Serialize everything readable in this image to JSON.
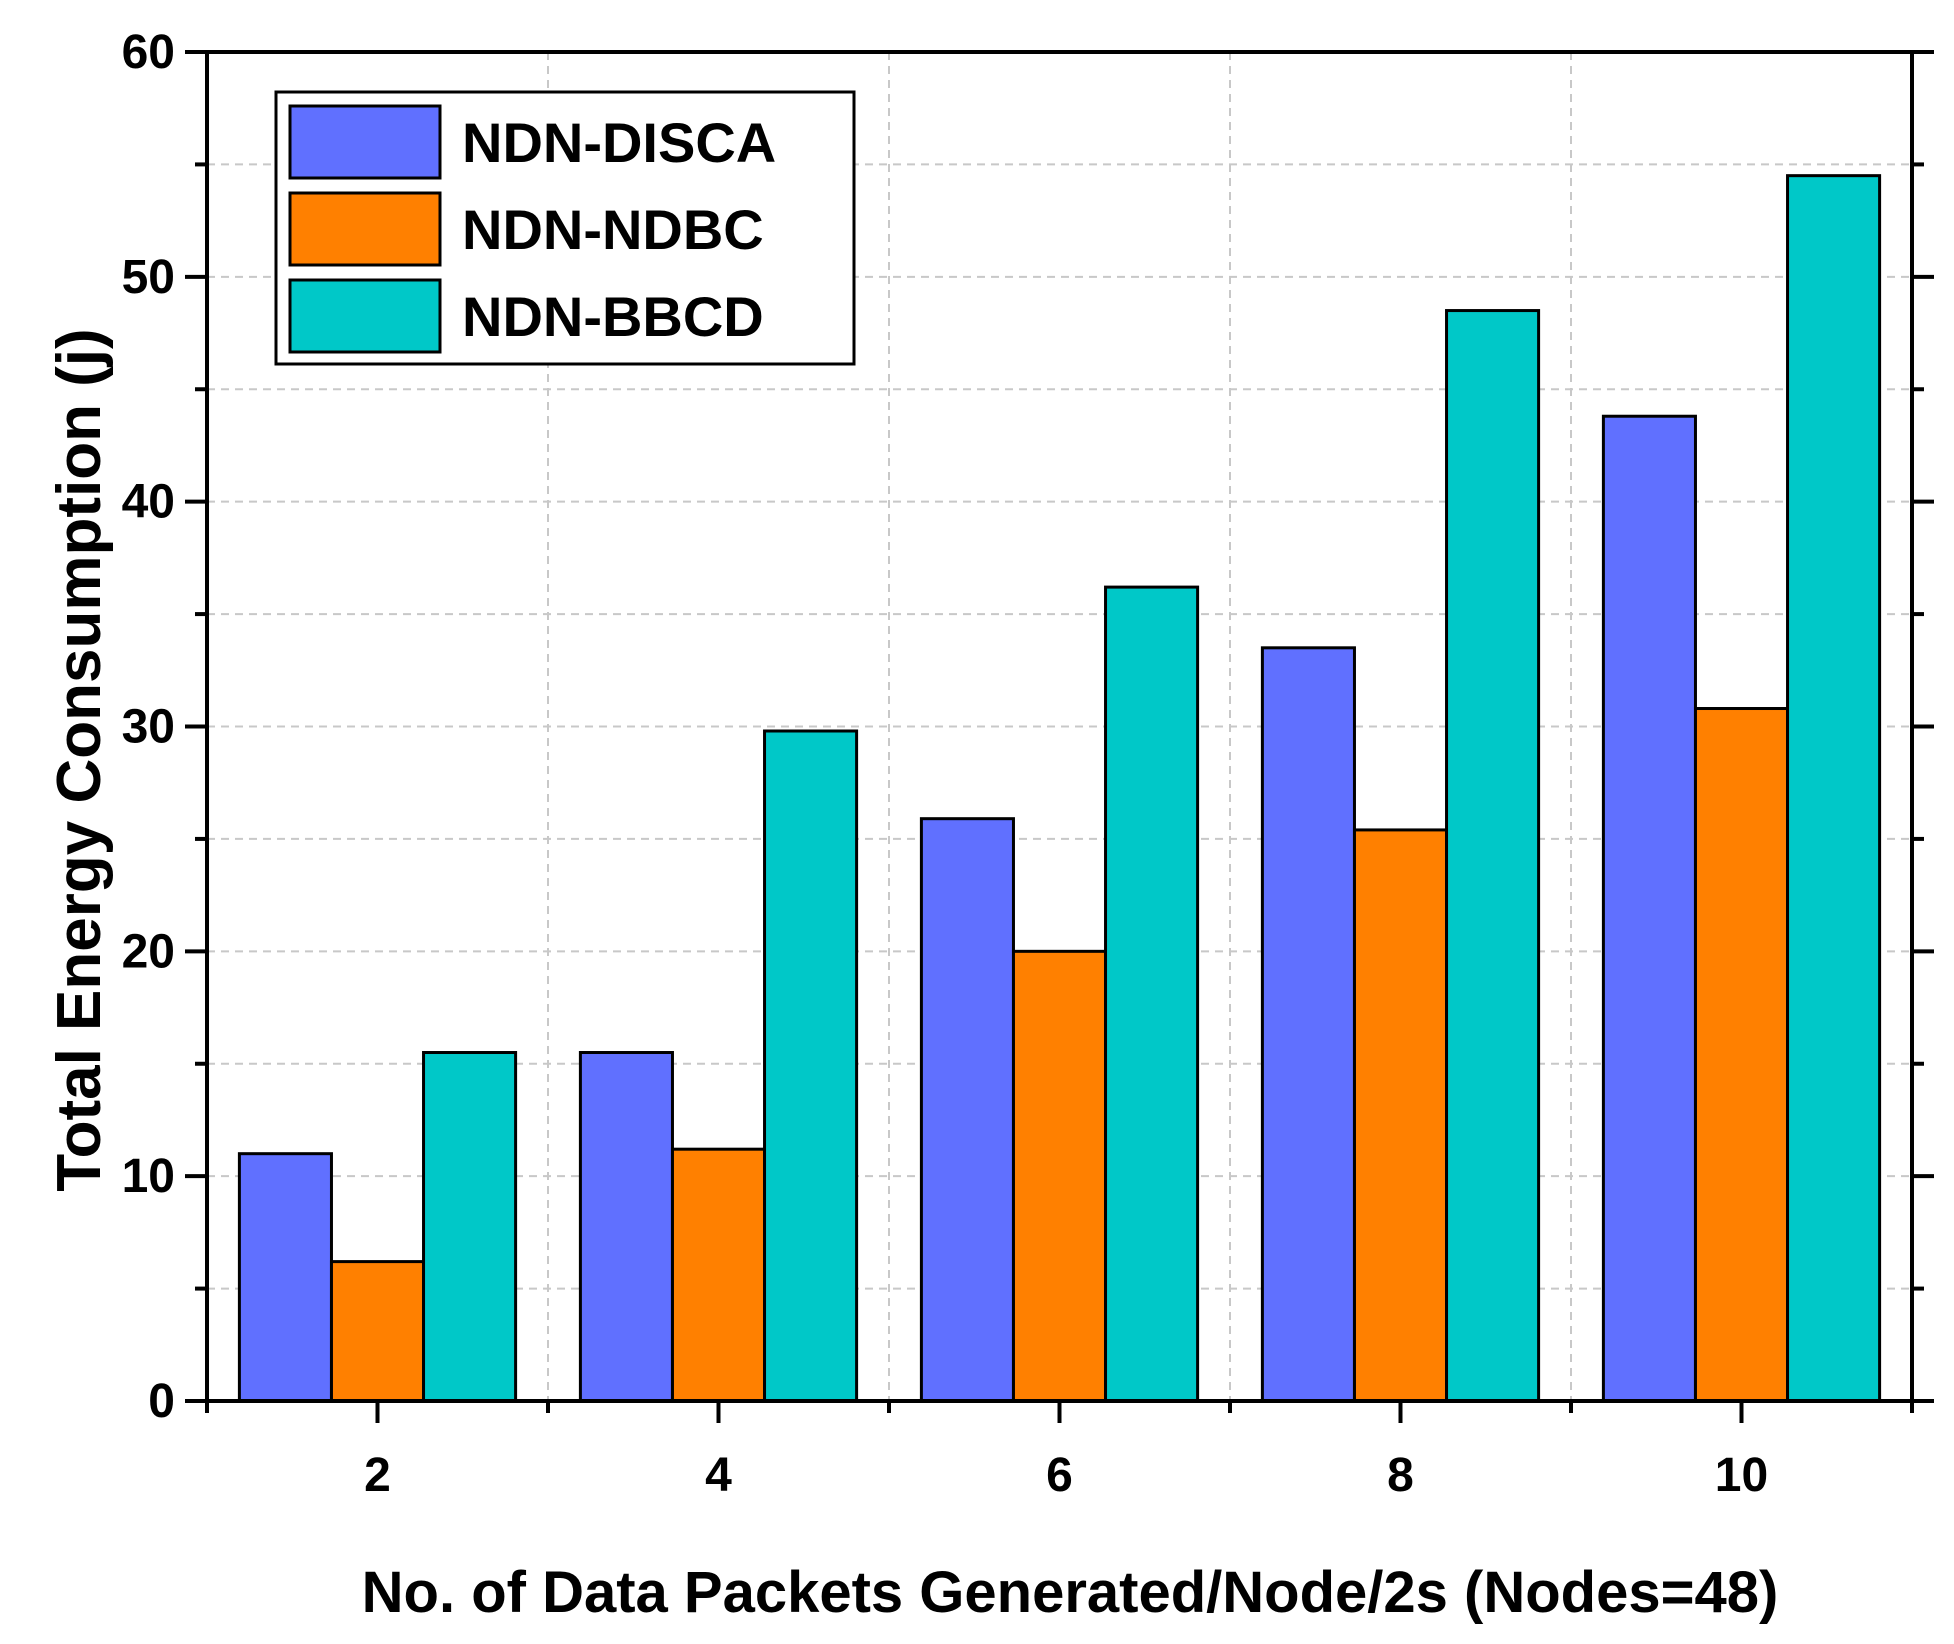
{
  "chart_data": {
    "type": "bar",
    "title": "",
    "xlabel": "No. of Data Packets Generated/Node/2s (Nodes=48)",
    "ylabel": "Total Energy Consumption (j)",
    "categories": [
      "2",
      "4",
      "6",
      "8",
      "10"
    ],
    "series": [
      {
        "name": "NDN-DISCA",
        "color": "#6070ff",
        "values": [
          11.0,
          15.5,
          25.9,
          33.5,
          43.8
        ]
      },
      {
        "name": "NDN-NDBC",
        "color": "#ff8000",
        "values": [
          6.2,
          11.2,
          20.0,
          25.4,
          30.8
        ]
      },
      {
        "name": "NDN-BBCD",
        "color": "#00c8c8",
        "values": [
          15.5,
          29.8,
          36.2,
          48.5,
          54.5
        ]
      }
    ],
    "ylim": [
      0,
      60
    ],
    "yticks": [
      "0",
      "10",
      "20",
      "30",
      "40",
      "50",
      "60"
    ],
    "grid": true,
    "legend_position": "top-left"
  }
}
